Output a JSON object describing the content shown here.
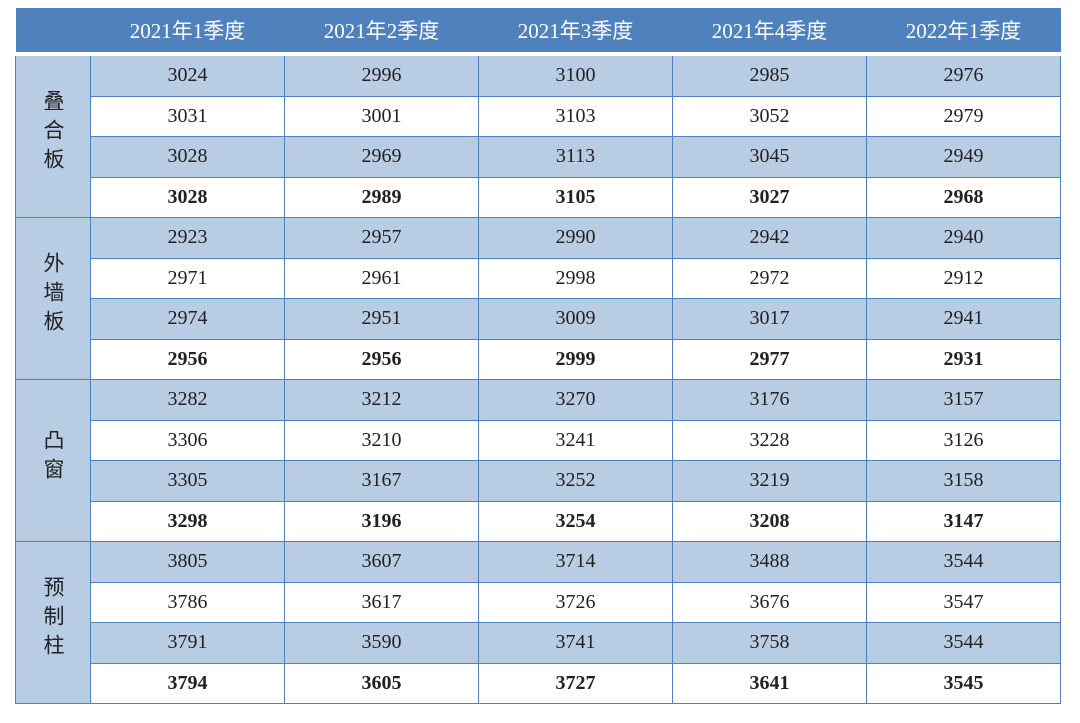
{
  "table": {
    "columns": [
      "2021年1季度",
      "2021年2季度",
      "2021年3季度",
      "2021年4季度",
      "2022年1季度"
    ],
    "groups": [
      {
        "label": "叠合板",
        "rows": [
          [
            3024,
            2996,
            3100,
            2985,
            2976
          ],
          [
            3031,
            3001,
            3103,
            3052,
            2979
          ],
          [
            3028,
            2969,
            3113,
            3045,
            2949
          ],
          [
            3028,
            2989,
            3105,
            3027,
            2968
          ]
        ]
      },
      {
        "label": "外墙板",
        "rows": [
          [
            2923,
            2957,
            2990,
            2942,
            2940
          ],
          [
            2971,
            2961,
            2998,
            2972,
            2912
          ],
          [
            2974,
            2951,
            3009,
            3017,
            2941
          ],
          [
            2956,
            2956,
            2999,
            2977,
            2931
          ]
        ]
      },
      {
        "label": "凸窗",
        "rows": [
          [
            3282,
            3212,
            3270,
            3176,
            3157
          ],
          [
            3306,
            3210,
            3241,
            3228,
            3126
          ],
          [
            3305,
            3167,
            3252,
            3219,
            3158
          ],
          [
            3298,
            3196,
            3254,
            3208,
            3147
          ]
        ]
      },
      {
        "label": "预制柱",
        "rows": [
          [
            3805,
            3607,
            3714,
            3488,
            3544
          ],
          [
            3786,
            3617,
            3726,
            3676,
            3547
          ],
          [
            3791,
            3590,
            3741,
            3758,
            3544
          ],
          [
            3794,
            3605,
            3727,
            3641,
            3545
          ]
        ]
      }
    ]
  }
}
